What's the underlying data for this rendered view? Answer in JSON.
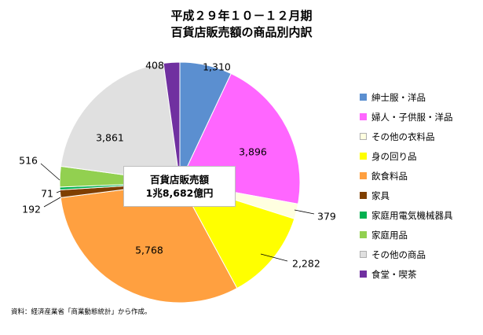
{
  "title_line1": "平成２９年１０－１２月期",
  "title_line2": "百貨店販売額の商品別内訳",
  "center_label_line1": "百貨店販売額",
  "center_label_line2": "1兆8,682億円",
  "source_note": "資料：経済産業省「商業動態統計」から作成。",
  "chart_data": {
    "type": "pie",
    "title": "平成２９年１０－１２月期 百貨店販売額の商品別内訳",
    "legend_position": "right",
    "slices": [
      {
        "name": "紳士服・洋品",
        "value": 1310,
        "label": "1,310",
        "color": "#5b8fd0"
      },
      {
        "name": "婦人・子供服・洋品",
        "value": 3896,
        "label": "3,896",
        "color": "#ff66ff"
      },
      {
        "name": "その他の衣料品",
        "value": 379,
        "label": "379",
        "color": "#ffffe0"
      },
      {
        "name": "身の回り品",
        "value": 2282,
        "label": "2,282",
        "color": "#ffff00"
      },
      {
        "name": "飲食料品",
        "value": 5768,
        "label": "5,768",
        "color": "#ffa040"
      },
      {
        "name": "家具",
        "value": 192,
        "label": "192",
        "color": "#7f3f00"
      },
      {
        "name": "家庭用電気機械器具",
        "value": 71,
        "label": "71",
        "color": "#00b050"
      },
      {
        "name": "家庭用品",
        "value": 516,
        "label": "516",
        "color": "#92d050"
      },
      {
        "name": "その他の商品",
        "value": 3861,
        "label": "3,861",
        "color": "#e0e0e0"
      },
      {
        "name": "食堂・喫茶",
        "value": 408,
        "label": "408",
        "color": "#7030a0"
      }
    ]
  }
}
